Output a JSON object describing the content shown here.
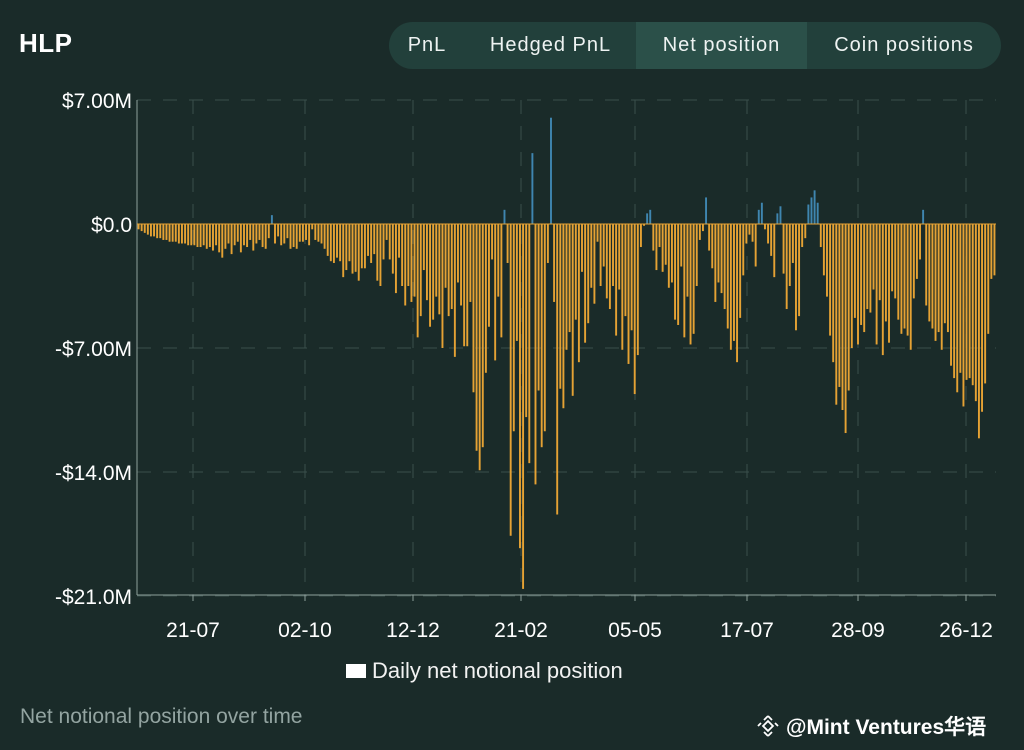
{
  "header": {
    "title": "HLP",
    "tabs": [
      {
        "label": "PnL",
        "active": false
      },
      {
        "label": "Hedged PnL",
        "active": false
      },
      {
        "label": "Net position",
        "active": true
      },
      {
        "label": "Coin positions",
        "active": false
      }
    ]
  },
  "caption": "Net notional position over time",
  "watermark": {
    "text": "@Mint Ventures华语",
    "icon": "binance-logo-icon"
  },
  "colors": {
    "background": "#1a2b29",
    "negative": "#e5a234",
    "positive": "#3f86b0",
    "tab_active": "#2b5049",
    "tab_bar": "#22403b"
  },
  "chart_data": {
    "type": "bar",
    "title": "",
    "xlabel": "",
    "ylabel": "",
    "legend": {
      "label": "Daily net notional position",
      "placement": "bottom-center"
    },
    "y_ticks": [
      {
        "value": 7,
        "label": "$7.00M"
      },
      {
        "value": 0,
        "label": "$0.0"
      },
      {
        "value": -7,
        "label": "-$7.00M"
      },
      {
        "value": -14,
        "label": "-$14.0M"
      },
      {
        "value": -21,
        "label": "-$21.0M"
      }
    ],
    "x_ticks": [
      "21-07",
      "02-10",
      "12-12",
      "21-02",
      "05-05",
      "17-07",
      "28-09",
      "26-12"
    ],
    "ylim": [
      -21,
      7
    ],
    "grid": true,
    "series": [
      {
        "unit": "$M",
        "values": [
          -0.3,
          -0.4,
          -0.5,
          -0.6,
          -0.7,
          -0.7,
          -0.8,
          -0.8,
          -0.9,
          -0.9,
          -1.0,
          -1.0,
          -1.0,
          -1.1,
          -1.1,
          -1.1,
          -1.2,
          -1.2,
          -1.2,
          -1.3,
          -1.3,
          -1.2,
          -1.4,
          -1.3,
          -1.5,
          -1.2,
          -1.6,
          -1.9,
          -1.4,
          -1.1,
          -1.7,
          -1.2,
          -1.0,
          -1.6,
          -1.2,
          -1.3,
          -0.9,
          -1.5,
          -1.1,
          -0.9,
          -1.3,
          -1.4,
          -0.8,
          0.5,
          -1.1,
          -0.7,
          -1.2,
          -1.1,
          -0.8,
          -1.4,
          -1.3,
          -1.4,
          -1.0,
          -1.0,
          -0.9,
          -1.2,
          -0.3,
          -0.9,
          -1.0,
          -1.1,
          -1.4,
          -1.8,
          -2.1,
          -2.2,
          -1.9,
          -2.1,
          -3.0,
          -2.6,
          -2.1,
          -2.8,
          -2.7,
          -3.2,
          -2.5,
          -2.5,
          -1.8,
          -2.2,
          -1.7,
          -3.2,
          -3.5,
          -2.0,
          -0.9,
          -2.0,
          -2.8,
          -3.9,
          -1.9,
          -3.5,
          -4.6,
          -3.5,
          -4.4,
          -4.1,
          -6.4,
          -5.2,
          -2.6,
          -4.3,
          -5.8,
          -5.4,
          -4.1,
          -5.1,
          -7.0,
          -3.6,
          -5.2,
          -4.8,
          -7.5,
          -3.3,
          -4.6,
          -6.9,
          -6.9,
          -4.4,
          -9.5,
          -12.8,
          -13.9,
          -12.6,
          -8.4,
          -5.8,
          -2.0,
          -7.7,
          -4.1,
          -6.4,
          0.8,
          -2.2,
          -17.6,
          -11.7,
          -6.6,
          -18.3,
          -20.6,
          -10.9,
          -13.5,
          4.0,
          -14.7,
          -9.4,
          -12.6,
          -11.7,
          -2.2,
          6.0,
          -4.4,
          -16.4,
          -9.3,
          -10.4,
          -7.1,
          -6.1,
          -9.7,
          -5.4,
          -7.8,
          -2.7,
          -6.7,
          -5.6,
          -3.6,
          -4.5,
          -1.0,
          -3.5,
          -2.4,
          -4.2,
          -4.8,
          -3.5,
          -6.3,
          -3.7,
          -7.1,
          -5.2,
          -7.9,
          -6.0,
          -9.6,
          -7.4,
          -1.3,
          -0.1,
          0.6,
          0.8,
          -1.5,
          -2.6,
          -1.3,
          -2.7,
          -2.3,
          -3.6,
          -3.3,
          -5.4,
          -5.7,
          -2.4,
          -6.4,
          -4.1,
          -6.8,
          -6.2,
          -3.5,
          -0.9,
          -0.4,
          1.5,
          -1.5,
          -2.5,
          -4.4,
          -3.3,
          -3.9,
          -4.8,
          -5.9,
          -7.1,
          -6.6,
          -7.8,
          -5.3,
          -2.9,
          -1.1,
          -0.6,
          -1.0,
          -2.4,
          0.8,
          1.2,
          -0.3,
          -1.1,
          -1.8,
          -3.0,
          0.6,
          1.0,
          -2.8,
          -4.8,
          -3.5,
          -2.2,
          -6.0,
          -5.2,
          -1.3,
          -0.8,
          1.1,
          1.5,
          1.9,
          1.2,
          -1.3,
          -2.9,
          -4.1,
          -6.3,
          -7.8,
          -10.2,
          -9.2,
          -10.5,
          -11.8,
          -9.4,
          -7.0,
          -5.3,
          -6.8,
          -5.7,
          -6.1,
          -4.8,
          -5.0,
          -3.7,
          -6.8,
          -4.3,
          -7.4,
          -5.5,
          -6.7,
          -3.8,
          -4.2,
          -5.4,
          -6.2,
          -5.9,
          -6.3,
          -7.1,
          -4.2,
          -3.1,
          -2.0,
          0.8,
          -4.6,
          -5.5,
          -5.9,
          -6.6,
          -6.1,
          -7.1,
          -5.6,
          -6.1,
          -8.0,
          -8.7,
          -9.5,
          -8.4,
          -10.3,
          -8.8,
          -8.7,
          -9.1,
          -10.0,
          -12.1,
          -10.6,
          -9.0,
          -6.2,
          -3.1,
          -2.9
        ]
      }
    ]
  }
}
